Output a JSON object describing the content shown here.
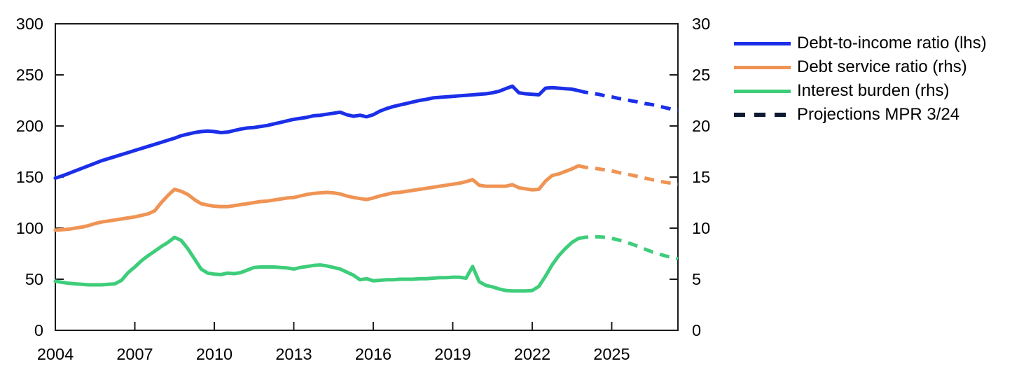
{
  "chart_data": {
    "type": "line",
    "title": "",
    "x_axis": {
      "tick_labels": [
        "2004",
        "2007",
        "2010",
        "2013",
        "2016",
        "2019",
        "2022",
        "2025"
      ],
      "tick_years": [
        2004,
        2007,
        2010,
        2013,
        2016,
        2019,
        2022,
        2025
      ],
      "range": [
        2004,
        2027.5
      ],
      "grid": false
    },
    "y_axis_left": {
      "ticks": [
        0,
        50,
        100,
        150,
        200,
        250,
        300
      ],
      "range": [
        0,
        300
      ]
    },
    "y_axis_right": {
      "ticks": [
        0,
        5,
        10,
        15,
        20,
        25,
        30
      ],
      "range": [
        0,
        30
      ]
    },
    "series_start_year": 2004,
    "series_step_years": 0.25,
    "projection_start_year": 2023.75,
    "series": [
      {
        "name": "Debt-to-income ratio (lhs)",
        "axis": "left",
        "color": "#1b2fe9",
        "values": [
          149,
          151,
          153.5,
          156,
          158.5,
          161,
          163.5,
          166,
          168,
          170,
          172,
          174,
          176,
          178,
          180,
          182,
          184,
          186,
          188,
          190.5,
          192,
          193.5,
          194.5,
          195,
          194.5,
          193.5,
          194,
          195.5,
          197,
          198,
          198.5,
          199.5,
          200.5,
          202,
          203.5,
          205,
          206.5,
          207.5,
          208.5,
          210,
          210.5,
          211.5,
          212.5,
          213.5,
          211,
          209.5,
          210.5,
          209,
          211,
          214.5,
          217,
          219,
          220.5,
          222,
          223.5,
          225,
          226,
          227.5,
          228,
          228.5,
          229,
          229.5,
          230,
          230.5,
          231,
          231.5,
          232.5,
          234,
          236.5,
          239,
          232.5,
          231.5,
          231,
          230.5,
          237,
          237.5,
          237,
          236.5,
          236,
          234.5
        ],
        "projection_values": [
          234.5,
          233,
          232,
          231,
          229.5,
          228.5,
          227,
          226,
          224.5,
          223.5,
          222,
          221,
          219.5,
          218,
          216.5,
          215
        ]
      },
      {
        "name": "Debt service ratio (rhs)",
        "axis": "right",
        "color": "#ef9454",
        "values": [
          9.8,
          9.85,
          9.9,
          10,
          10.1,
          10.25,
          10.45,
          10.6,
          10.7,
          10.8,
          10.9,
          11,
          11.1,
          11.25,
          11.4,
          11.7,
          12.5,
          13.2,
          13.8,
          13.6,
          13.3,
          12.8,
          12.4,
          12.25,
          12.15,
          12.1,
          12.1,
          12.2,
          12.3,
          12.4,
          12.5,
          12.6,
          12.65,
          12.75,
          12.85,
          12.95,
          13,
          13.15,
          13.3,
          13.4,
          13.45,
          13.5,
          13.45,
          13.35,
          13.15,
          13,
          12.9,
          12.8,
          12.95,
          13.15,
          13.3,
          13.45,
          13.5,
          13.6,
          13.7,
          13.8,
          13.9,
          14,
          14.1,
          14.2,
          14.3,
          14.4,
          14.55,
          14.75,
          14.2,
          14.1,
          14.1,
          14.1,
          14.1,
          14.25,
          13.95,
          13.85,
          13.75,
          13.8,
          14.6,
          15.15,
          15.3,
          15.55,
          15.8,
          16.1
        ],
        "projection_values": [
          16.1,
          15.95,
          15.9,
          15.8,
          15.7,
          15.6,
          15.45,
          15.3,
          15.2,
          15.05,
          14.9,
          14.75,
          14.6,
          14.5,
          14.4,
          14.3
        ]
      },
      {
        "name": "Interest burden (rhs)",
        "axis": "right",
        "color": "#3ecd7a",
        "values": [
          4.8,
          4.7,
          4.6,
          4.55,
          4.5,
          4.45,
          4.45,
          4.45,
          4.5,
          4.55,
          4.9,
          5.65,
          6.2,
          6.8,
          7.3,
          7.75,
          8.2,
          8.6,
          9.1,
          8.8,
          8,
          7,
          6,
          5.6,
          5.5,
          5.45,
          5.6,
          5.55,
          5.65,
          5.9,
          6.15,
          6.2,
          6.2,
          6.2,
          6.15,
          6.1,
          6,
          6.15,
          6.25,
          6.35,
          6.4,
          6.3,
          6.15,
          6,
          5.7,
          5.4,
          4.95,
          5.05,
          4.85,
          4.9,
          4.95,
          4.95,
          5,
          5,
          5,
          5.05,
          5.05,
          5.1,
          5.15,
          5.15,
          5.2,
          5.2,
          5.1,
          6.25,
          4.75,
          4.4,
          4.25,
          4.05,
          3.9,
          3.85,
          3.85,
          3.85,
          3.9,
          4.3,
          5.3,
          6.4,
          7.3,
          8,
          8.6,
          9
        ],
        "projection_values": [
          9,
          9.1,
          9.15,
          9.15,
          9.1,
          9,
          8.85,
          8.65,
          8.45,
          8.2,
          7.95,
          7.7,
          7.5,
          7.3,
          7.15,
          7
        ]
      }
    ],
    "legend": [
      {
        "label": "Debt-to-income ratio (lhs)",
        "color": "#1b2fe9",
        "style": "solid"
      },
      {
        "label": "Debt service ratio (rhs)",
        "color": "#ef9454",
        "style": "solid"
      },
      {
        "label": "Interest burden (rhs)",
        "color": "#3ecd7a",
        "style": "solid"
      },
      {
        "label": "Projections MPR 3/24",
        "color": "#0e1a33",
        "style": "dashed"
      }
    ],
    "axis_color": "#1a1a1a"
  }
}
